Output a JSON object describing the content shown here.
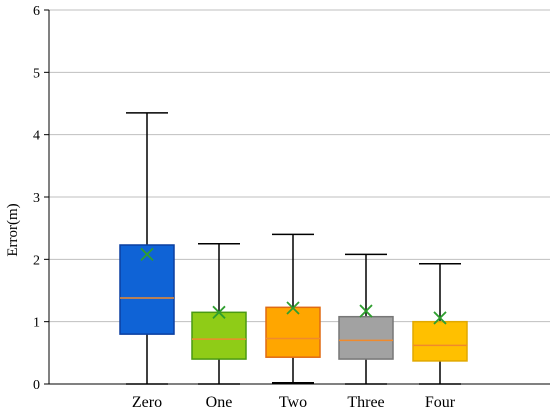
{
  "chart_data": {
    "type": "box",
    "title": "",
    "xlabel": "",
    "ylabel": "Error(m)",
    "ylim": [
      0,
      6
    ],
    "yticks": [
      0,
      1,
      2,
      3,
      4,
      5,
      6
    ],
    "grid": true,
    "legend": "none",
    "categories": [
      "Zero",
      "One",
      "Two",
      "Three",
      "Four"
    ],
    "boxes": [
      {
        "min": 0.0,
        "q1": 0.8,
        "median": 1.38,
        "q3": 2.23,
        "max": 4.35,
        "mean": 2.08,
        "fill": "#0f63d6",
        "stroke": "#0b3fa0"
      },
      {
        "min": 0.0,
        "q1": 0.4,
        "median": 0.72,
        "q3": 1.15,
        "max": 2.25,
        "mean": 1.15,
        "fill": "#8fcc17",
        "stroke": "#4a9a12"
      },
      {
        "min": 0.02,
        "q1": 0.43,
        "median": 0.73,
        "q3": 1.23,
        "max": 2.4,
        "mean": 1.22,
        "fill": "#ffa600",
        "stroke": "#e06a12"
      },
      {
        "min": 0.0,
        "q1": 0.4,
        "median": 0.7,
        "q3": 1.08,
        "max": 2.08,
        "mean": 1.17,
        "fill": "#a2a2a2",
        "stroke": "#777777"
      },
      {
        "min": 0.0,
        "q1": 0.37,
        "median": 0.62,
        "q3": 1.0,
        "max": 1.93,
        "mean": 1.06,
        "fill": "#ffc000",
        "stroke": "#e0a800"
      }
    ],
    "median_color": "#f08a2c",
    "mean_marker": "x",
    "mean_color": "#2e9e2e"
  }
}
